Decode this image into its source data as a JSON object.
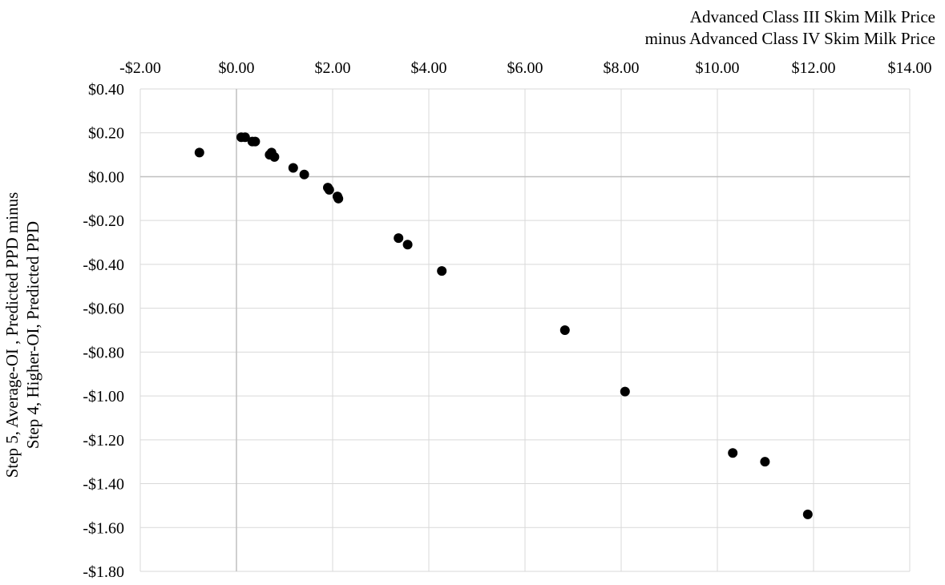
{
  "chart_data": {
    "type": "scatter",
    "title": "",
    "xlabel": [
      "Advanced Class III Skim Milk Price",
      "minus Advanced Class IV Skim Milk Price"
    ],
    "ylabel": [
      "Step 5, Average-OI , Predicted PPD minus",
      "Step 4, Higher-OI, Predicted PPD"
    ],
    "xlim": [
      -2,
      14
    ],
    "ylim": [
      -1.8,
      0.4
    ],
    "x_axis_position": "top",
    "grid": true,
    "legend": "none",
    "x_ticks": [
      {
        "value": -2,
        "label": "-$2.00"
      },
      {
        "value": 0,
        "label": "$0.00"
      },
      {
        "value": 2,
        "label": "$2.00"
      },
      {
        "value": 4,
        "label": "$4.00"
      },
      {
        "value": 6,
        "label": "$6.00"
      },
      {
        "value": 8,
        "label": "$8.00"
      },
      {
        "value": 10,
        "label": "$10.00"
      },
      {
        "value": 12,
        "label": "$12.00"
      },
      {
        "value": 14,
        "label": "$14.00"
      }
    ],
    "y_ticks": [
      {
        "value": 0.4,
        "label": "$0.40"
      },
      {
        "value": 0.2,
        "label": "$0.20"
      },
      {
        "value": 0.0,
        "label": "$0.00"
      },
      {
        "value": -0.2,
        "label": "-$0.20"
      },
      {
        "value": -0.4,
        "label": "-$0.40"
      },
      {
        "value": -0.6,
        "label": "-$0.60"
      },
      {
        "value": -0.8,
        "label": "-$0.80"
      },
      {
        "value": -1.0,
        "label": "-$1.00"
      },
      {
        "value": -1.2,
        "label": "-$1.20"
      },
      {
        "value": -1.4,
        "label": "-$1.40"
      },
      {
        "value": -1.6,
        "label": "-$1.60"
      },
      {
        "value": -1.8,
        "label": "-$1.80"
      }
    ],
    "colors": {
      "marker": "#000000",
      "grid": "#d9d9d9",
      "zero_axis": "#bfbfbf"
    },
    "points": [
      {
        "x": -0.77,
        "y": 0.11
      },
      {
        "x": 0.1,
        "y": 0.18
      },
      {
        "x": 0.18,
        "y": 0.18
      },
      {
        "x": 0.33,
        "y": 0.16
      },
      {
        "x": 0.39,
        "y": 0.16
      },
      {
        "x": 0.69,
        "y": 0.1
      },
      {
        "x": 0.73,
        "y": 0.11
      },
      {
        "x": 0.79,
        "y": 0.09
      },
      {
        "x": 1.18,
        "y": 0.04
      },
      {
        "x": 1.41,
        "y": 0.01
      },
      {
        "x": 1.9,
        "y": -0.05
      },
      {
        "x": 1.93,
        "y": -0.06
      },
      {
        "x": 2.1,
        "y": -0.09
      },
      {
        "x": 2.12,
        "y": -0.1
      },
      {
        "x": 3.37,
        "y": -0.28
      },
      {
        "x": 3.56,
        "y": -0.31
      },
      {
        "x": 4.27,
        "y": -0.43
      },
      {
        "x": 6.83,
        "y": -0.7
      },
      {
        "x": 8.08,
        "y": -0.98
      },
      {
        "x": 10.32,
        "y": -1.26
      },
      {
        "x": 10.99,
        "y": -1.3
      },
      {
        "x": 11.88,
        "y": -1.54
      }
    ]
  }
}
